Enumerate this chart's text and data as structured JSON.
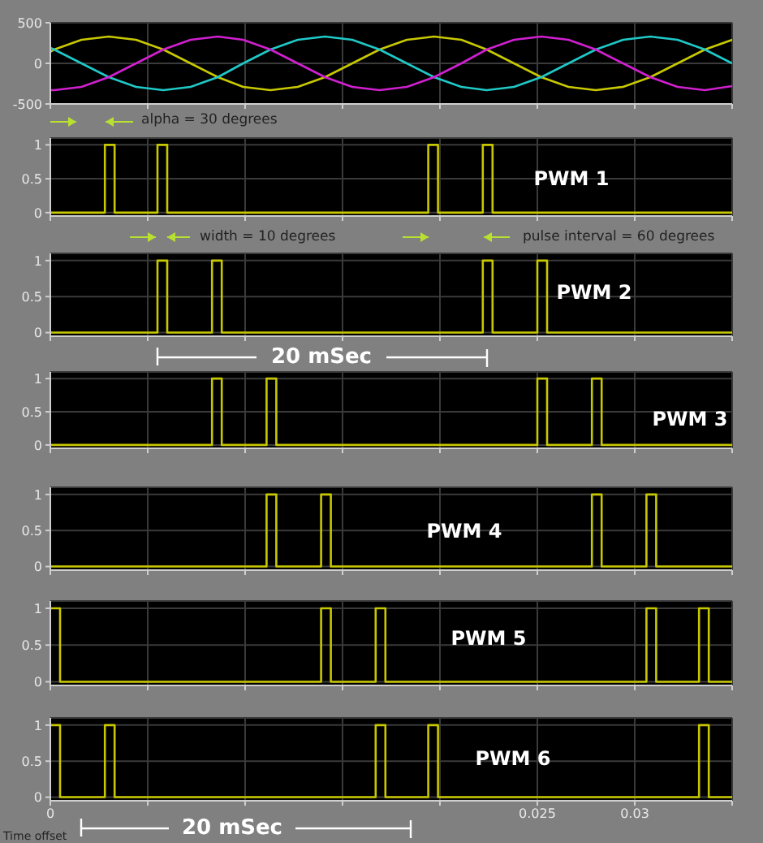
{
  "chart_data": [
    {
      "type": "line",
      "xlim": [
        0,
        0.035
      ],
      "xticks": [
        0,
        {
          "value": 0.005,
          "label": null
        },
        {
          "value": 0.01,
          "label": null
        },
        {
          "value": 0.015,
          "label": null
        },
        {
          "value": 0.02,
          "label": null
        },
        {
          "value": 0.025,
          "label": null
        },
        {
          "value": 0.03,
          "label": null
        },
        {
          "value": 0.035,
          "label": null
        }
      ],
      "ylim": [
        -500,
        500
      ],
      "yticks": [
        -500,
        0,
        500
      ],
      "grid": true,
      "tick_labels": "y",
      "x": [
        0,
        0.0002,
        0.0016,
        0.003,
        0.0044,
        0.0058,
        0.0072,
        0.0086,
        0.0099,
        0.0113,
        0.0127,
        0.0141,
        0.0155,
        0.0169,
        0.0183,
        0.0197,
        0.0211,
        0.0224,
        0.0238,
        0.0252,
        0.0266,
        0.028,
        0.0294,
        0.0308,
        0.0322,
        0.0336,
        0.035
      ],
      "series": [
        {
          "color": "#c8c800",
          "values": [
            140,
            170,
            290,
            330,
            290,
            170,
            0,
            -170,
            -290,
            -330,
            -290,
            -170,
            0,
            170,
            290,
            330,
            290,
            170,
            0,
            -170,
            -290,
            -330,
            -290,
            -170,
            0,
            170,
            290
          ]
        },
        {
          "color": "#20c8c8",
          "values": [
            190,
            170,
            0,
            -170,
            -290,
            -330,
            -290,
            -170,
            0,
            170,
            290,
            330,
            290,
            170,
            0,
            -170,
            -290,
            -330,
            -290,
            -170,
            0,
            170,
            290,
            330,
            290,
            170,
            0
          ]
        },
        {
          "color": "#d020d0",
          "values": [
            -330,
            -330,
            -290,
            -170,
            0,
            170,
            290,
            330,
            290,
            170,
            0,
            -170,
            -290,
            -330,
            -290,
            -170,
            0,
            170,
            290,
            330,
            290,
            170,
            0,
            -170,
            -290,
            -330,
            -280
          ]
        }
      ],
      "annotations": [
        "alpha = 30 degrees"
      ]
    },
    {
      "type": "step",
      "xlim": [
        0,
        0.035
      ],
      "xticks": [
        0,
        {
          "value": 0.005,
          "label": null
        },
        {
          "value": 0.01,
          "label": null
        },
        {
          "value": 0.015,
          "label": null
        },
        {
          "value": 0.02,
          "label": null
        },
        {
          "value": 0.025,
          "label": null
        },
        {
          "value": 0.03,
          "label": null
        },
        {
          "value": 0.035,
          "label": null
        }
      ],
      "ylim": [
        -0.05,
        1.1
      ],
      "yticks": [
        0,
        0.5,
        1
      ],
      "grid": true,
      "tick_labels": "y",
      "series": [
        {
          "name": "PWM 1",
          "color": "#c8c800",
          "x": [
            0,
            0.0028,
            0.0033,
            0.0055,
            0.006,
            0.0194,
            0.0199,
            0.0222,
            0.0227,
            0.035
          ],
          "values": [
            0,
            1,
            0,
            1,
            0,
            1,
            0,
            1,
            0,
            0
          ]
        }
      ],
      "annotations": [
        "width = 10 degrees",
        "pulse interval = 60 degrees"
      ]
    },
    {
      "type": "step",
      "xlim": [
        0,
        0.035
      ],
      "xticks": [
        0,
        {
          "value": 0.005,
          "label": null
        },
        {
          "value": 0.01,
          "label": null
        },
        {
          "value": 0.015,
          "label": null
        },
        {
          "value": 0.02,
          "label": null
        },
        {
          "value": 0.025,
          "label": null
        },
        {
          "value": 0.03,
          "label": null
        },
        {
          "value": 0.035,
          "label": null
        }
      ],
      "ylim": [
        -0.05,
        1.1
      ],
      "yticks": [
        0,
        0.5,
        1
      ],
      "grid": true,
      "tick_labels": "y",
      "series": [
        {
          "name": "PWM 2",
          "color": "#c8c800",
          "x": [
            0,
            0.0055,
            0.006,
            0.0083,
            0.0088,
            0.0222,
            0.0227,
            0.025,
            0.0255,
            0.035
          ],
          "values": [
            0,
            1,
            0,
            1,
            0,
            1,
            0,
            1,
            0,
            0
          ]
        }
      ],
      "annotations": [
        "20 mSec"
      ]
    },
    {
      "type": "step",
      "xlim": [
        0,
        0.035
      ],
      "xticks": [
        0,
        {
          "value": 0.005,
          "label": null
        },
        {
          "value": 0.01,
          "label": null
        },
        {
          "value": 0.015,
          "label": null
        },
        {
          "value": 0.02,
          "label": null
        },
        {
          "value": 0.025,
          "label": null
        },
        {
          "value": 0.03,
          "label": null
        },
        {
          "value": 0.035,
          "label": null
        }
      ],
      "ylim": [
        -0.05,
        1.1
      ],
      "yticks": [
        0,
        0.5,
        1
      ],
      "grid": true,
      "tick_labels": "y",
      "series": [
        {
          "name": "PWM 3",
          "color": "#c8c800",
          "x": [
            0,
            0.0083,
            0.0088,
            0.0111,
            0.0116,
            0.025,
            0.0255,
            0.0278,
            0.0283,
            0.035
          ],
          "values": [
            0,
            1,
            0,
            1,
            0,
            1,
            0,
            1,
            0,
            0
          ]
        }
      ]
    },
    {
      "type": "step",
      "xlim": [
        0,
        0.035
      ],
      "xticks": [
        0,
        {
          "value": 0.005,
          "label": null
        },
        {
          "value": 0.01,
          "label": null
        },
        {
          "value": 0.015,
          "label": null
        },
        {
          "value": 0.02,
          "label": null
        },
        {
          "value": 0.025,
          "label": null
        },
        {
          "value": 0.03,
          "label": null
        },
        {
          "value": 0.035,
          "label": null
        }
      ],
      "ylim": [
        -0.05,
        1.1
      ],
      "yticks": [
        0,
        0.5,
        1
      ],
      "grid": true,
      "tick_labels": "y",
      "series": [
        {
          "name": "PWM 4",
          "color": "#c8c800",
          "x": [
            0,
            0.0111,
            0.0116,
            0.0139,
            0.0144,
            0.0278,
            0.0283,
            0.0306,
            0.0311,
            0.035
          ],
          "values": [
            0,
            1,
            0,
            1,
            0,
            1,
            0,
            1,
            0,
            0
          ]
        }
      ]
    },
    {
      "type": "step",
      "xlim": [
        0,
        0.035
      ],
      "xticks": [
        0,
        {
          "value": 0.005,
          "label": null
        },
        {
          "value": 0.01,
          "label": null
        },
        {
          "value": 0.015,
          "label": null
        },
        {
          "value": 0.02,
          "label": null
        },
        {
          "value": 0.025,
          "label": null
        },
        {
          "value": 0.03,
          "label": null
        },
        {
          "value": 0.035,
          "label": null
        }
      ],
      "ylim": [
        -0.05,
        1.1
      ],
      "yticks": [
        0,
        0.5,
        1
      ],
      "grid": true,
      "tick_labels": "y",
      "series": [
        {
          "name": "PWM 5",
          "color": "#c8c800",
          "x": [
            0,
            0.0005,
            0.0139,
            0.0144,
            0.0167,
            0.0172,
            0.0306,
            0.0311,
            0.0333,
            0.0338,
            0.035
          ],
          "values": [
            1,
            0,
            1,
            0,
            1,
            0,
            1,
            0,
            1,
            0,
            0
          ]
        }
      ]
    },
    {
      "type": "step",
      "xlim": [
        0,
        0.035
      ],
      "xticks": [
        0,
        {
          "value": 0.005,
          "label": null
        },
        {
          "value": 0.01,
          "label": null
        },
        {
          "value": 0.015,
          "label": null
        },
        {
          "value": 0.02,
          "label": null
        },
        0.025,
        0.03,
        {
          "value": 0.035,
          "label": null
        }
      ],
      "ylim": [
        -0.05,
        1.1
      ],
      "yticks": [
        0,
        0.5,
        1
      ],
      "grid": true,
      "series": [
        {
          "name": "PWM 6",
          "color": "#c8c800",
          "x": [
            0,
            0.0005,
            0.0028,
            0.0033,
            0.0167,
            0.0172,
            0.0194,
            0.0199,
            0.0333,
            0.0338,
            0.035
          ],
          "values": [
            1,
            0,
            1,
            0,
            1,
            0,
            1,
            0,
            1,
            0,
            0
          ]
        }
      ],
      "annotations": [
        "20 mSec",
        "Time offset"
      ]
    }
  ]
}
